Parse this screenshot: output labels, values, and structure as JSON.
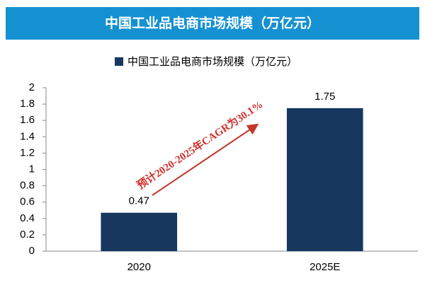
{
  "chart_data": {
    "type": "bar",
    "title": "中国工业品电商市场规模（万亿元）",
    "legend": "中国工业品电商市场规模（万亿元）",
    "categories": [
      "2020",
      "2025E"
    ],
    "values": [
      0.47,
      1.75
    ],
    "color": "#17375e",
    "ylim": [
      0,
      2
    ],
    "yticks": [
      0,
      0.2,
      0.4,
      0.6,
      0.8,
      1,
      1.2,
      1.4,
      1.6,
      1.8,
      2
    ],
    "grid": false,
    "annotation": "预计2020-2025年CAGR为30.1%"
  }
}
